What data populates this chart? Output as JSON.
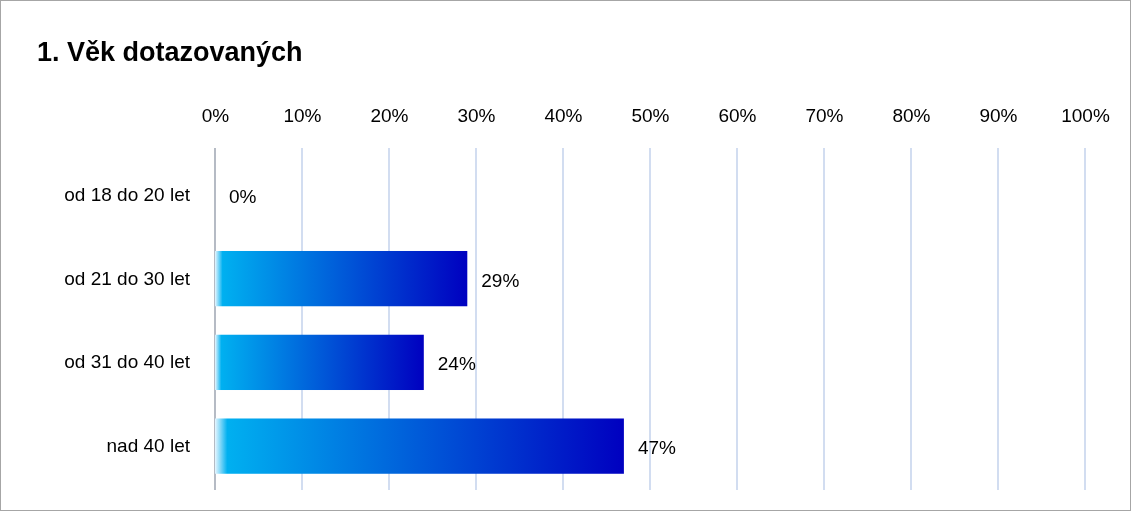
{
  "chart_data": {
    "type": "bar",
    "orientation": "horizontal",
    "title": "1. Věk dotazovaných",
    "categories": [
      "od 18 do 20 let",
      "od 21 do 30 let",
      "od 31 do 40 let",
      "nad 40 let"
    ],
    "values": [
      0,
      29,
      24,
      47
    ],
    "color": "#0000c0",
    "value_labels": [
      "0%",
      "29%",
      "24%",
      "47%"
    ],
    "xlim": [
      0,
      100
    ],
    "xticks": [
      {
        "value": 0,
        "label": "0%"
      },
      {
        "value": 10,
        "label": "10%"
      },
      {
        "value": 20,
        "label": "20%"
      },
      {
        "value": 30,
        "label": "30%"
      },
      {
        "value": 40,
        "label": "40%"
      },
      {
        "value": 50,
        "label": "50%"
      },
      {
        "value": 60,
        "label": "60%"
      },
      {
        "value": 70,
        "label": "70%"
      },
      {
        "value": 80,
        "label": "80%"
      },
      {
        "value": 90,
        "label": "90%"
      },
      {
        "value": 100,
        "label": "100%"
      }
    ],
    "grid": "x"
  }
}
